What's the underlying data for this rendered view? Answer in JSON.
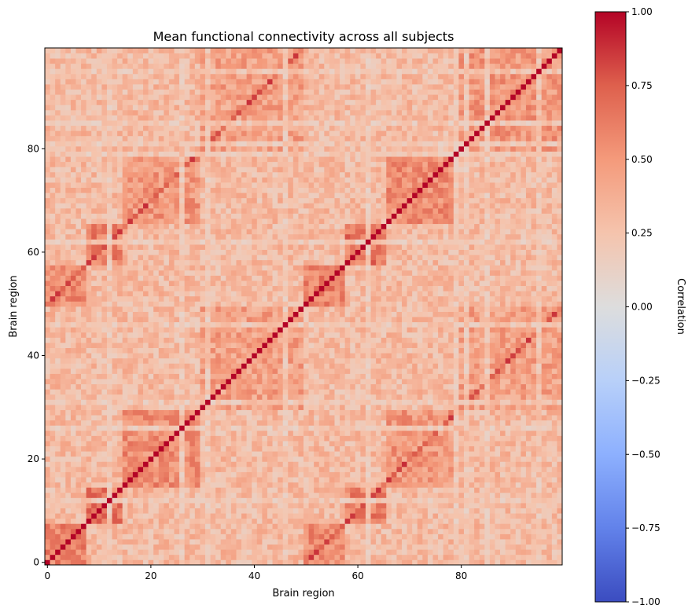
{
  "chart_data": {
    "type": "heatmap",
    "title": "Mean functional connectivity across all subjects",
    "xlabel": "Brain region",
    "ylabel": "Brain region",
    "n_regions": 100,
    "x_ticks": [
      0,
      20,
      40,
      60,
      80
    ],
    "y_ticks": [
      0,
      20,
      40,
      60,
      80
    ],
    "xlim": [
      -0.5,
      99.5
    ],
    "ylim": [
      -0.5,
      99.5
    ],
    "origin": "lower",
    "colormap": "coolwarm",
    "colorbar": {
      "label": "Correlation",
      "vmin": -1.0,
      "vmax": 1.0,
      "ticks": [
        "1.00",
        "0.75",
        "0.50",
        "0.25",
        "0.00",
        "−0.25",
        "−0.50",
        "−0.75",
        "−1.00"
      ],
      "tick_values": [
        1.0,
        0.75,
        0.5,
        0.25,
        0.0,
        -0.25,
        -0.5,
        -0.75,
        -1.0
      ]
    },
    "diagonal_value": 1.0,
    "mirror_offset": 50,
    "off_block_mean": 0.3,
    "modules": [
      {
        "regions": [
          0,
          7
        ],
        "within_value": 0.6
      },
      {
        "regions": [
          8,
          14
        ],
        "within_value": 0.65
      },
      {
        "regions": [
          15,
          29
        ],
        "within_value": 0.55
      },
      {
        "regions": [
          30,
          49
        ],
        "within_value": 0.45
      },
      {
        "regions": [
          50,
          57
        ],
        "within_value": 0.6
      },
      {
        "regions": [
          58,
          65
        ],
        "within_value": 0.65
      },
      {
        "regions": [
          66,
          79
        ],
        "within_value": 0.55
      },
      {
        "regions": [
          80,
          99
        ],
        "within_value": 0.5
      }
    ],
    "low_connectivity_rows": [
      12,
      26,
      31,
      46,
      62,
      79,
      81,
      85,
      95
    ],
    "low_connectivity_value": 0.1
  }
}
